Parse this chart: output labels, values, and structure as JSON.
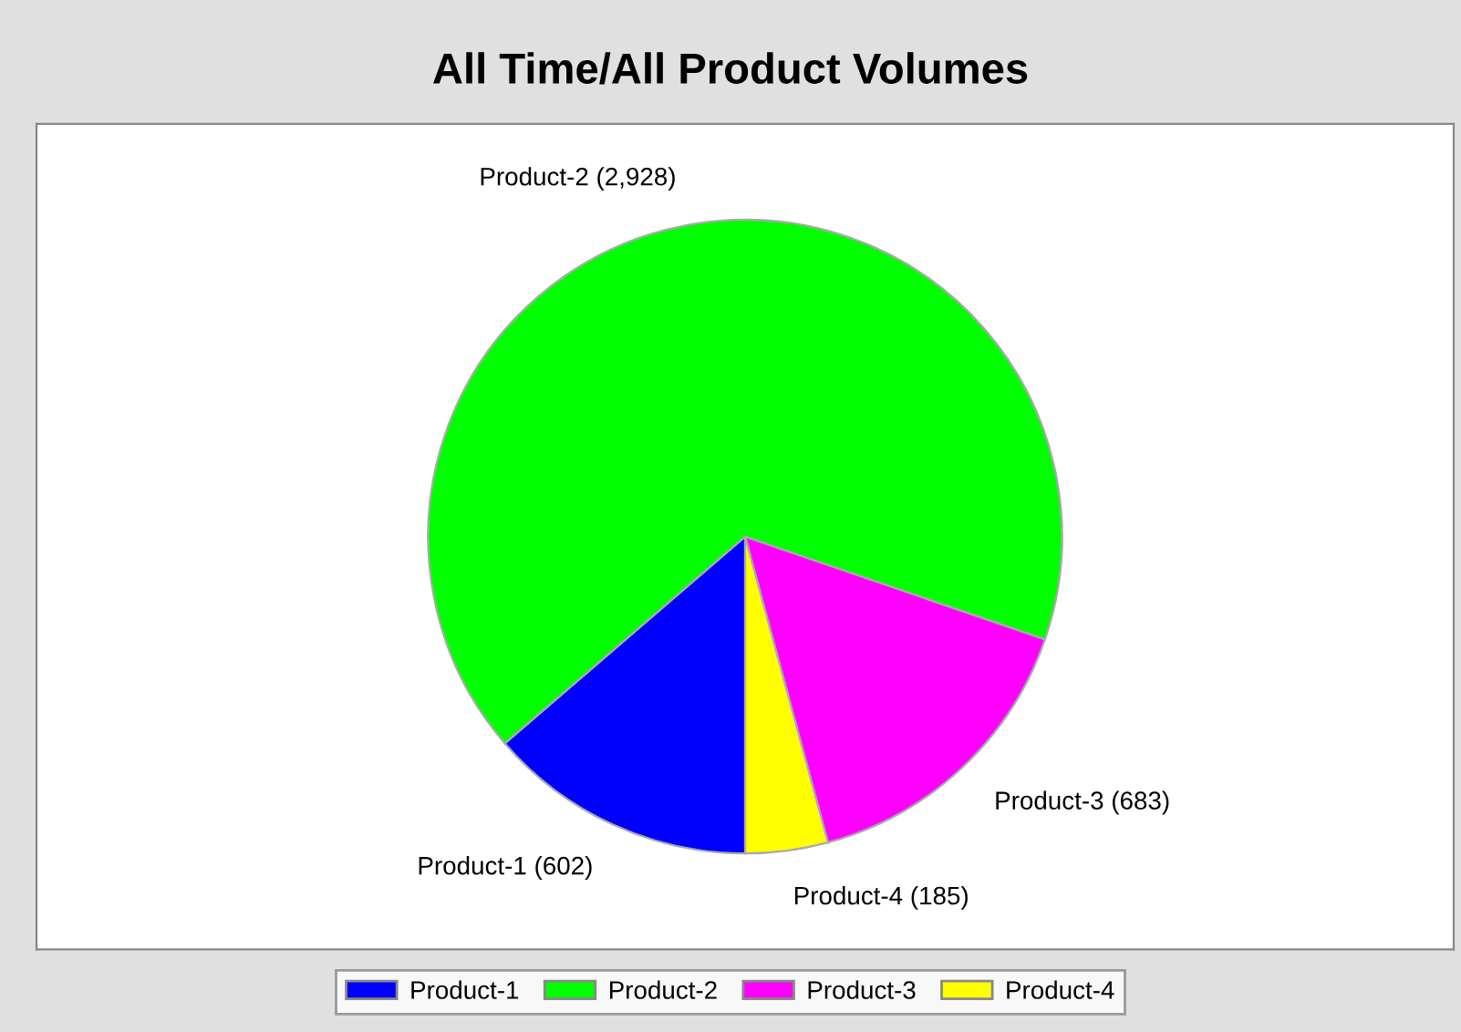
{
  "chart_data": {
    "type": "pie",
    "title": "All Time/All Product Volumes",
    "categories": [
      "Product-1",
      "Product-2",
      "Product-3",
      "Product-4"
    ],
    "values": [
      602,
      2928,
      683,
      185
    ],
    "value_labels": [
      "(602)",
      "(2,928)",
      "(683)",
      "(185)"
    ],
    "colors": [
      "#0000ff",
      "#00ff00",
      "#ff00ff",
      "#ffff00"
    ],
    "legend": "bottom"
  }
}
